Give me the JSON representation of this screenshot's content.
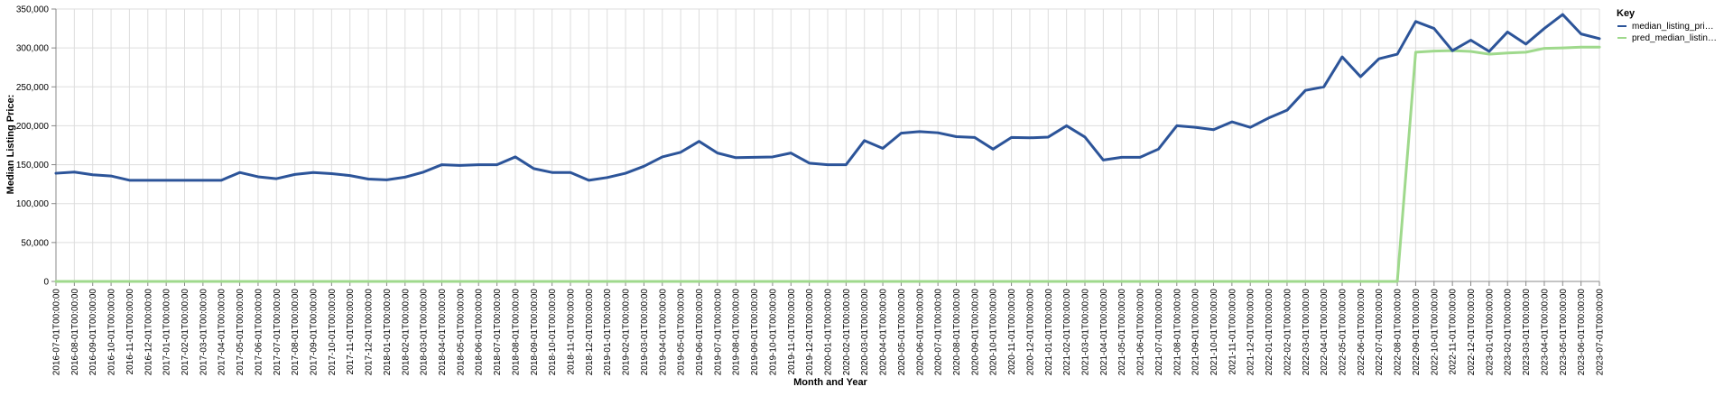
{
  "chart_data": {
    "type": "line",
    "xlabel": "Month and Year",
    "ylabel": "Median Listing Price:",
    "ylim": [
      0,
      350000
    ],
    "yticks": [
      0,
      50000,
      100000,
      150000,
      200000,
      250000,
      300000,
      350000
    ],
    "ytick_labels": [
      "0",
      "50,000",
      "100,000",
      "150,000",
      "200,000",
      "250,000",
      "300,000",
      "350,000"
    ],
    "grid": true,
    "legend_title": "Key",
    "legend_position": "top-right",
    "x": [
      "2016-07-01T00:00:00",
      "2016-08-01T00:00:00",
      "2016-09-01T00:00:00",
      "2016-10-01T00:00:00",
      "2016-11-01T00:00:00",
      "2016-12-01T00:00:00",
      "2017-01-01T00:00:00",
      "2017-02-01T00:00:00",
      "2017-03-01T00:00:00",
      "2017-04-01T00:00:00",
      "2017-05-01T00:00:00",
      "2017-06-01T00:00:00",
      "2017-07-01T00:00:00",
      "2017-08-01T00:00:00",
      "2017-09-01T00:00:00",
      "2017-10-01T00:00:00",
      "2017-11-01T00:00:00",
      "2017-12-01T00:00:00",
      "2018-01-01T00:00:00",
      "2018-02-01T00:00:00",
      "2018-03-01T00:00:00",
      "2018-04-01T00:00:00",
      "2018-05-01T00:00:00",
      "2018-06-01T00:00:00",
      "2018-07-01T00:00:00",
      "2018-08-01T00:00:00",
      "2018-09-01T00:00:00",
      "2018-10-01T00:00:00",
      "2018-11-01T00:00:00",
      "2018-12-01T00:00:00",
      "2019-01-01T00:00:00",
      "2019-02-01T00:00:00",
      "2019-03-01T00:00:00",
      "2019-04-01T00:00:00",
      "2019-05-01T00:00:00",
      "2019-06-01T00:00:00",
      "2019-07-01T00:00:00",
      "2019-08-01T00:00:00",
      "2019-09-01T00:00:00",
      "2019-10-01T00:00:00",
      "2019-11-01T00:00:00",
      "2019-12-01T00:00:00",
      "2020-01-01T00:00:00",
      "2020-02-01T00:00:00",
      "2020-03-01T00:00:00",
      "2020-04-01T00:00:00",
      "2020-05-01T00:00:00",
      "2020-06-01T00:00:00",
      "2020-07-01T00:00:00",
      "2020-08-01T00:00:00",
      "2020-09-01T00:00:00",
      "2020-10-01T00:00:00",
      "2020-11-01T00:00:00",
      "2020-12-01T00:00:00",
      "2021-01-01T00:00:00",
      "2021-02-01T00:00:00",
      "2021-03-01T00:00:00",
      "2021-04-01T00:00:00",
      "2021-05-01T00:00:00",
      "2021-06-01T00:00:00",
      "2021-07-01T00:00:00",
      "2021-08-01T00:00:00",
      "2021-09-01T00:00:00",
      "2021-10-01T00:00:00",
      "2021-11-01T00:00:00",
      "2021-12-01T00:00:00",
      "2022-01-01T00:00:00",
      "2022-02-01T00:00:00",
      "2022-03-01T00:00:00",
      "2022-04-01T00:00:00",
      "2022-05-01T00:00:00",
      "2022-06-01T00:00:00",
      "2022-07-01T00:00:00",
      "2022-08-01T00:00:00",
      "2022-09-01T00:00:00",
      "2022-10-01T00:00:00",
      "2022-11-01T00:00:00",
      "2022-12-01T00:00:00",
      "2023-01-01T00:00:00",
      "2023-02-01T00:00:00",
      "2023-03-01T00:00:00",
      "2023-04-01T00:00:00",
      "2023-05-01T00:00:00",
      "2023-06-01T00:00:00",
      "2023-07-01T00:00:00"
    ],
    "series": [
      {
        "name": "median_listing_pri…",
        "color": "#2c5499",
        "values": [
          139000,
          140500,
          137000,
          135500,
          130000,
          130000,
          130000,
          130000,
          130000,
          130000,
          140000,
          134500,
          132000,
          137500,
          140000,
          138500,
          136000,
          131500,
          130500,
          134000,
          140500,
          150000,
          149000,
          150000,
          150000,
          160000,
          145000,
          140000,
          140000,
          130000,
          133500,
          139000,
          148000,
          160000,
          166000,
          180000,
          165000,
          159000,
          159500,
          160000,
          165000,
          152000,
          150000,
          150000,
          181000,
          171000,
          190500,
          192500,
          191000,
          186000,
          185000,
          170000,
          185000,
          184500,
          185500,
          200000,
          185500,
          156000,
          159500,
          159500,
          170000,
          200000,
          198000,
          195000,
          205000,
          198000,
          210000,
          220000,
          245500,
          250000,
          288500,
          263000,
          286000,
          292000,
          334000,
          325000,
          296500,
          310000,
          295500,
          320500,
          305000,
          325000,
          343000,
          318000,
          312000
        ]
      },
      {
        "name": "pred_median_listin…",
        "color": "#9fd98c",
        "values": [
          0,
          0,
          0,
          0,
          0,
          0,
          0,
          0,
          0,
          0,
          0,
          0,
          0,
          0,
          0,
          0,
          0,
          0,
          0,
          0,
          0,
          0,
          0,
          0,
          0,
          0,
          0,
          0,
          0,
          0,
          0,
          0,
          0,
          0,
          0,
          0,
          0,
          0,
          0,
          0,
          0,
          0,
          0,
          0,
          0,
          0,
          0,
          0,
          0,
          0,
          0,
          0,
          0,
          0,
          0,
          0,
          0,
          0,
          0,
          0,
          0,
          0,
          0,
          0,
          0,
          0,
          0,
          0,
          0,
          0,
          0,
          0,
          0,
          0,
          294500,
          296000,
          296500,
          295500,
          292000,
          293500,
          294500,
          299500,
          300000,
          301000,
          301000
        ]
      }
    ]
  }
}
